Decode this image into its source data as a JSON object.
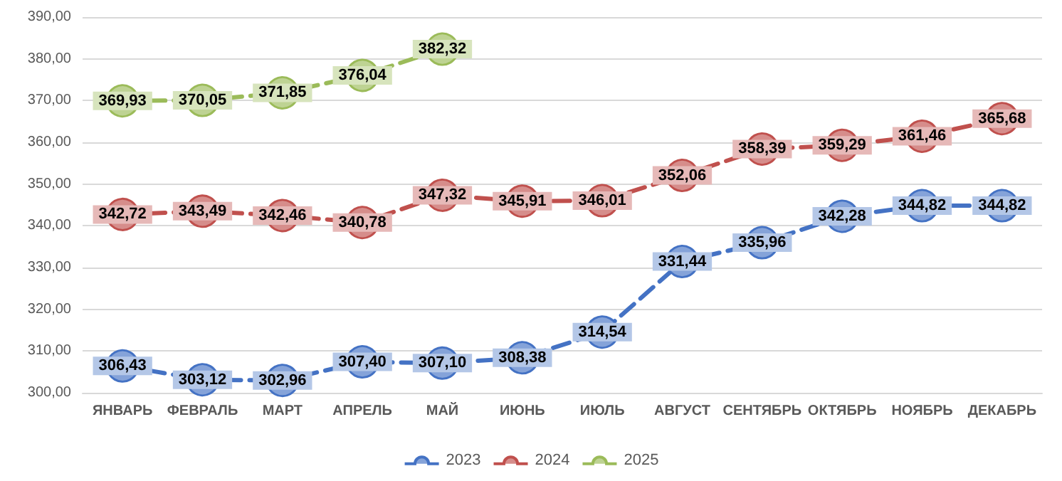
{
  "chart_data": {
    "type": "line",
    "categories": [
      "ЯНВАРЬ",
      "ФЕВРАЛЬ",
      "МАРТ",
      "АПРЕЛЬ",
      "МАЙ",
      "ИЮНЬ",
      "ИЮЛЬ",
      "АВГУСТ",
      "СЕНТЯБРЬ",
      "ОКТЯБРЬ",
      "НОЯБРЬ",
      "ДЕКАБРЬ"
    ],
    "series": [
      {
        "name": "2023",
        "color": "#4472c4",
        "values": [
          306.43,
          303.12,
          302.96,
          307.4,
          307.1,
          308.38,
          314.54,
          331.44,
          335.96,
          342.28,
          344.82,
          344.82
        ],
        "value_labels": [
          "306,43",
          "303,12",
          "302,96",
          "307,40",
          "307,10",
          "308,38",
          "314,54",
          "331,44",
          "335,96",
          "342,28",
          "344,82",
          "344,82"
        ]
      },
      {
        "name": "2024",
        "color": "#c0504d",
        "values": [
          342.72,
          343.49,
          342.46,
          340.78,
          347.32,
          345.91,
          346.01,
          352.06,
          358.39,
          359.29,
          361.46,
          365.68
        ],
        "value_labels": [
          "342,72",
          "343,49",
          "342,46",
          "340,78",
          "347,32",
          "345,91",
          "346,01",
          "352,06",
          "358,39",
          "359,29",
          "361,46",
          "365,68"
        ]
      },
      {
        "name": "2025",
        "color": "#9bbb59",
        "values": [
          369.93,
          370.05,
          371.85,
          376.04,
          382.32,
          null,
          null,
          null,
          null,
          null,
          null,
          null
        ],
        "value_labels": [
          "369,93",
          "370,05",
          "371,85",
          "376,04",
          "382,32",
          null,
          null,
          null,
          null,
          null,
          null,
          null
        ]
      }
    ],
    "ylim": [
      300,
      390
    ],
    "yticks": [
      {
        "value": 300,
        "label": "300,00"
      },
      {
        "value": 310,
        "label": "310,00"
      },
      {
        "value": 320,
        "label": "320,00"
      },
      {
        "value": 330,
        "label": "330,00"
      },
      {
        "value": 340,
        "label": "340,00"
      },
      {
        "value": 350,
        "label": "350,00"
      },
      {
        "value": 360,
        "label": "360,00"
      },
      {
        "value": 370,
        "label": "370,00"
      },
      {
        "value": 380,
        "label": "380,00"
      },
      {
        "value": 390,
        "label": "390,00"
      }
    ],
    "grid": "y",
    "legend": "bottom",
    "marker": "circle",
    "line_style": "dashed"
  }
}
